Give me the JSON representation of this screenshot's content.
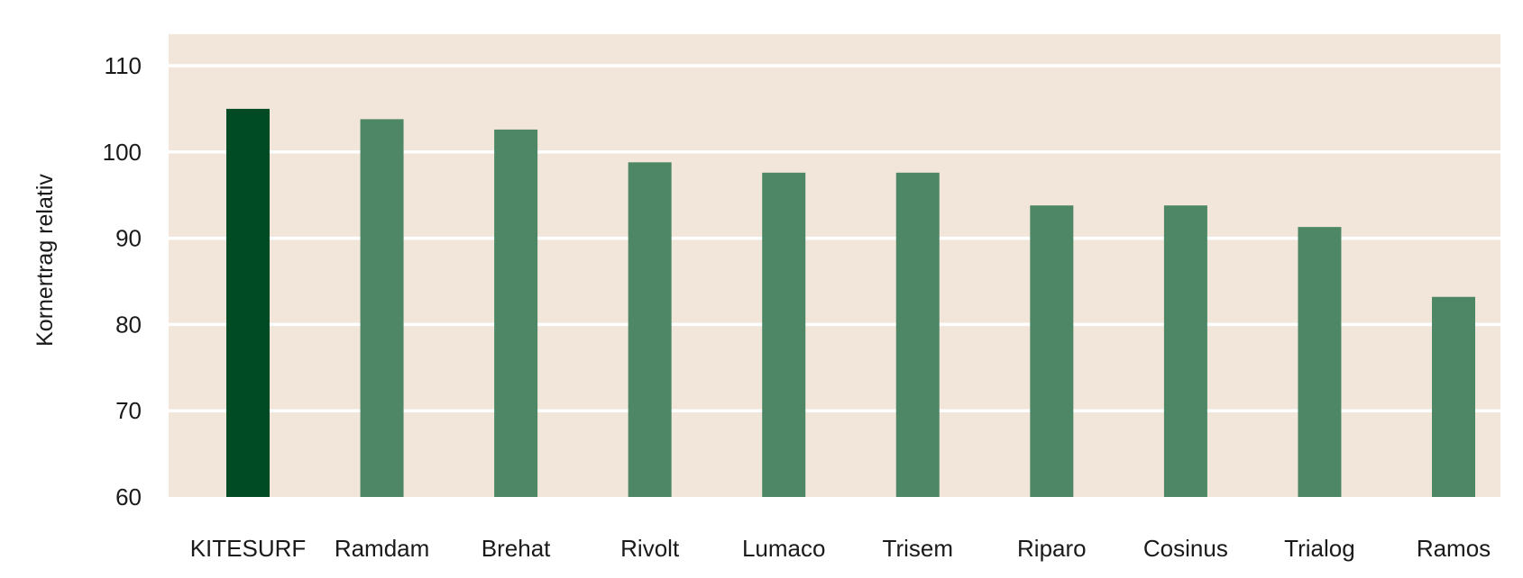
{
  "chart_data": {
    "type": "bar",
    "title": "",
    "xlabel": "",
    "ylabel": "Kornertrag relativ",
    "ylim": [
      60,
      110
    ],
    "yticks": [
      60,
      70,
      80,
      90,
      100,
      110
    ],
    "grid": true,
    "categories": [
      "KITESURF",
      "Ramdam",
      "Brehat",
      "Rivolt",
      "Lumaco",
      "Trisem",
      "Riparo",
      "Cosinus",
      "Trialog",
      "Ramos"
    ],
    "values": [
      105,
      103.8,
      102.6,
      98.8,
      97.6,
      97.6,
      93.8,
      93.8,
      91.3,
      83.2
    ],
    "highlight_index": 0,
    "colors": {
      "plot_background": "#f2e6da",
      "gridline": "#ffffff",
      "bar": "#4d8766",
      "bar_highlight": "#004a24"
    }
  }
}
